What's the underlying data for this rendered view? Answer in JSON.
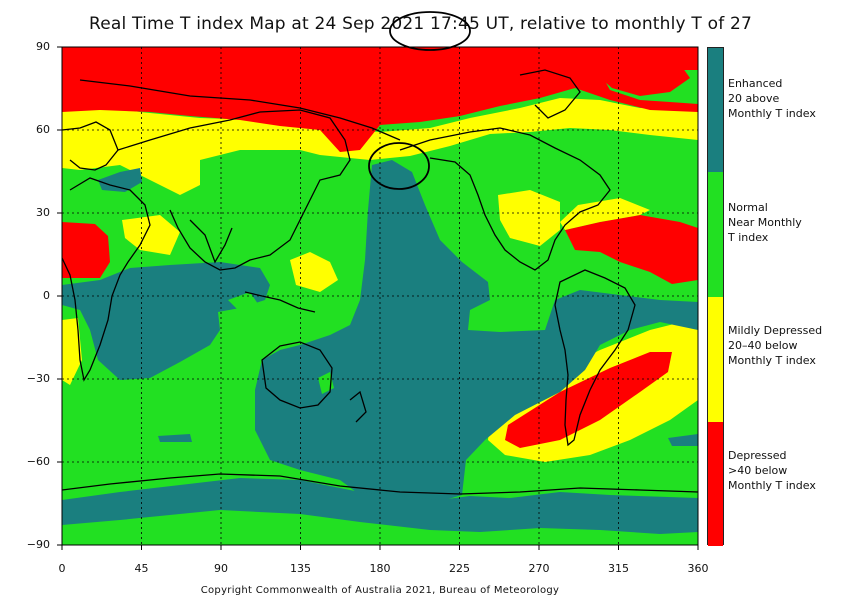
{
  "title": "Real Time T index Map at 24 Sep 2021 17:45 UT, relative to monthly T of 27",
  "copyright": "Copyright Commonwealth of Australia 2021, Bureau of Meteorology",
  "axes": {
    "y_ticks": [
      "90",
      "60",
      "30",
      "0",
      "−30",
      "−60",
      "−90"
    ],
    "x_ticks": [
      "0",
      "45",
      "90",
      "135",
      "180",
      "225",
      "270",
      "315",
      "360"
    ],
    "x_range": [
      0,
      360
    ],
    "y_range": [
      -90,
      90
    ],
    "grid": "dotted"
  },
  "colors": {
    "enhanced": "#1a7f7f",
    "normal": "#22e022",
    "mildly_depressed": "#ffff00",
    "depressed": "#ff0000",
    "coast": "#000000"
  },
  "legend": [
    {
      "key": "enhanced",
      "lines": [
        "Enhanced",
        "20 above",
        "Monthly T index"
      ]
    },
    {
      "key": "normal",
      "lines": [
        "Normal",
        "Near Monthly",
        "T index"
      ]
    },
    {
      "key": "mildly_depressed",
      "lines": [
        "Mildly Depressed",
        "20–40 below",
        "Monthly T index"
      ]
    },
    {
      "key": "depressed",
      "lines": [
        "Depressed",
        ">40 below",
        "Monthly T index"
      ]
    }
  ],
  "annotations": [
    {
      "shape": "ellipse",
      "around": "time stamp in title"
    },
    {
      "shape": "ellipse",
      "around": "North Pacific near 190E, 50N"
    }
  ]
}
